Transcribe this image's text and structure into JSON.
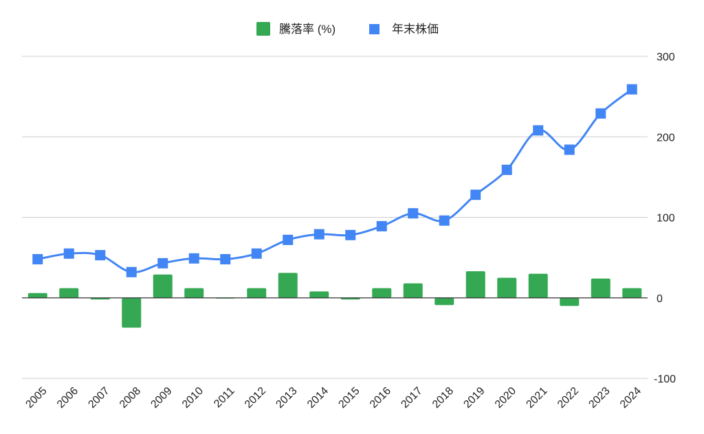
{
  "chart_data": {
    "type": "bar+line",
    "title": "",
    "xlabel": "",
    "ylabel": "",
    "categories": [
      "2005",
      "2006",
      "2007",
      "2008",
      "2009",
      "2010",
      "2011",
      "2012",
      "2013",
      "2014",
      "2015",
      "2016",
      "2017",
      "2018",
      "2019",
      "2020",
      "2021",
      "2022",
      "2023",
      "2024"
    ],
    "series": [
      {
        "name": "騰落率 (%)",
        "type": "bar",
        "color": "#34A853",
        "values": [
          6,
          12,
          -2,
          -37,
          29,
          12,
          0,
          12,
          31,
          8,
          -2,
          12,
          18,
          -9,
          33,
          25,
          30,
          -10,
          24,
          12
        ]
      },
      {
        "name": "年末株価",
        "type": "line",
        "color": "#4285F4",
        "marker": "square",
        "smooth": true,
        "values": [
          48,
          55,
          53,
          32,
          43,
          49,
          48,
          55,
          72,
          79,
          78,
          89,
          105,
          96,
          128,
          159,
          208,
          184,
          229,
          259
        ]
      }
    ],
    "y_axis": {
      "position": "right",
      "ylim": [
        -100,
        300
      ],
      "ticks": [
        "300",
        "200",
        "100",
        "0",
        "-100"
      ],
      "tick_values": [
        300,
        200,
        100,
        0,
        -100
      ]
    },
    "grid": true,
    "legend_position": "top",
    "x_tick_rotation": -45
  },
  "legend": {
    "items": [
      {
        "label": "騰落率 (%)",
        "color": "#34A853"
      },
      {
        "label": "年末株価",
        "color": "#4285F4"
      }
    ]
  }
}
